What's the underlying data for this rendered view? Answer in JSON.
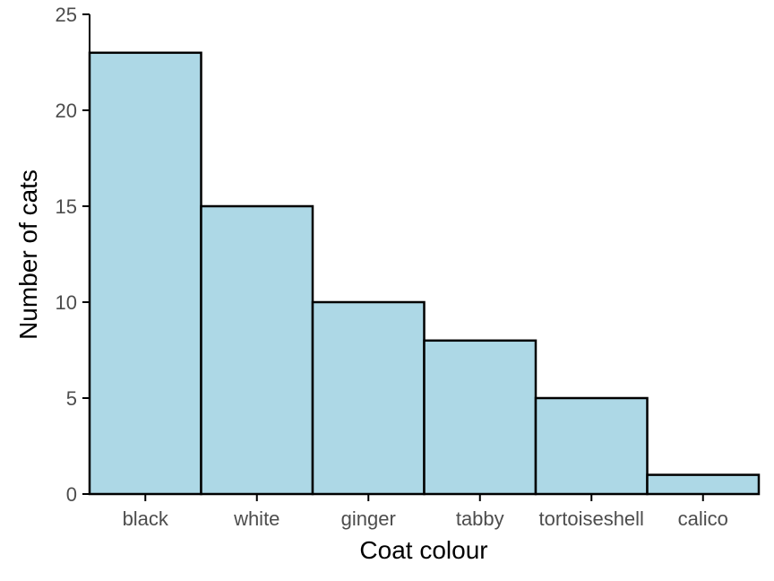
{
  "chart_data": {
    "type": "bar",
    "categories": [
      "black",
      "white",
      "ginger",
      "tabby",
      "tortoiseshell",
      "calico"
    ],
    "values": [
      23,
      15,
      10,
      8,
      5,
      1
    ],
    "title": "",
    "xlabel": "Coat colour",
    "ylabel": "Number of cats",
    "ylim": [
      0,
      25
    ],
    "yticks": [
      0,
      5,
      10,
      15,
      20,
      25
    ],
    "grid": false,
    "colors": {
      "bar_fill": "#add8e6",
      "bar_stroke": "#000000"
    }
  }
}
